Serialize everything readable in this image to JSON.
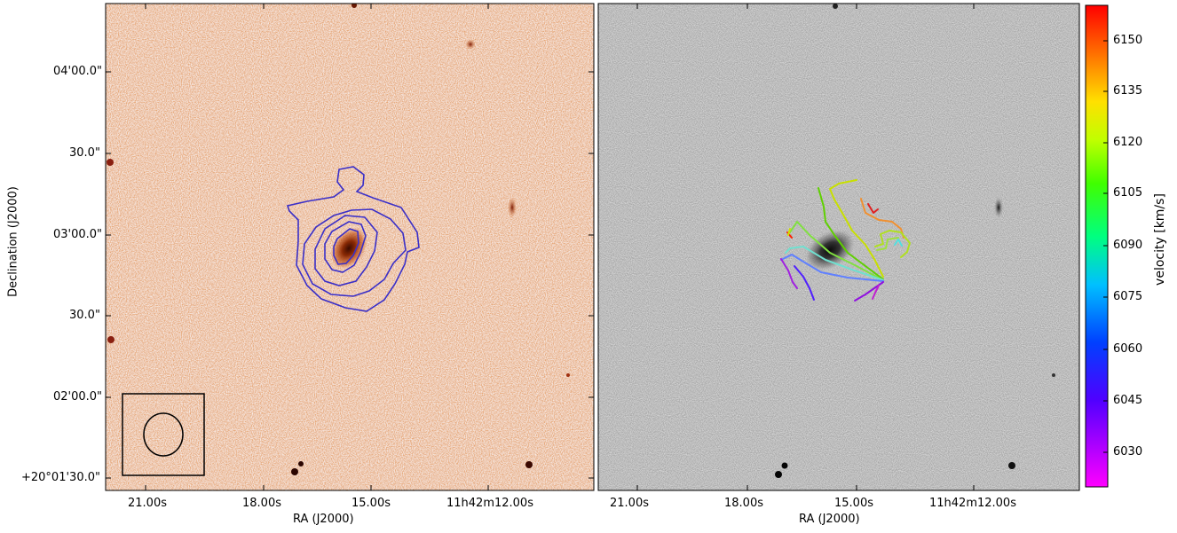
{
  "chart_data": [
    {
      "type": "image-contour",
      "panel": "optical image with HI intensity contours",
      "xlabel": "RA (J2000)",
      "ylabel": "Declination (J2000)",
      "x_ticks": [
        "21.00s",
        "18.00s",
        "15.00s",
        "11h42m12.00s"
      ],
      "y_ticks": [
        "04'00.0\"",
        "30.0\"",
        "03'00.0\"",
        "30.0\"",
        "02'00.0\"",
        "+20°01'30.0\""
      ],
      "contour_color": "#3a2fc8",
      "image_colormap": "orange",
      "beam": "ellipse in boxed lower-left corner"
    },
    {
      "type": "image-contour",
      "panel": "grayscale optical image with HI velocity field contours",
      "xlabel": "RA (J2000)",
      "x_ticks": [
        "21.00s",
        "18.00s",
        "15.00s",
        "11h42m12.00s"
      ],
      "colorbar": {
        "label": "velocity [km/s]",
        "ticks": [
          6150,
          6135,
          6120,
          6105,
          6090,
          6075,
          6060,
          6045,
          6030
        ],
        "range": [
          6020,
          6160
        ],
        "colormap": "gist_rainbow"
      }
    }
  ]
}
